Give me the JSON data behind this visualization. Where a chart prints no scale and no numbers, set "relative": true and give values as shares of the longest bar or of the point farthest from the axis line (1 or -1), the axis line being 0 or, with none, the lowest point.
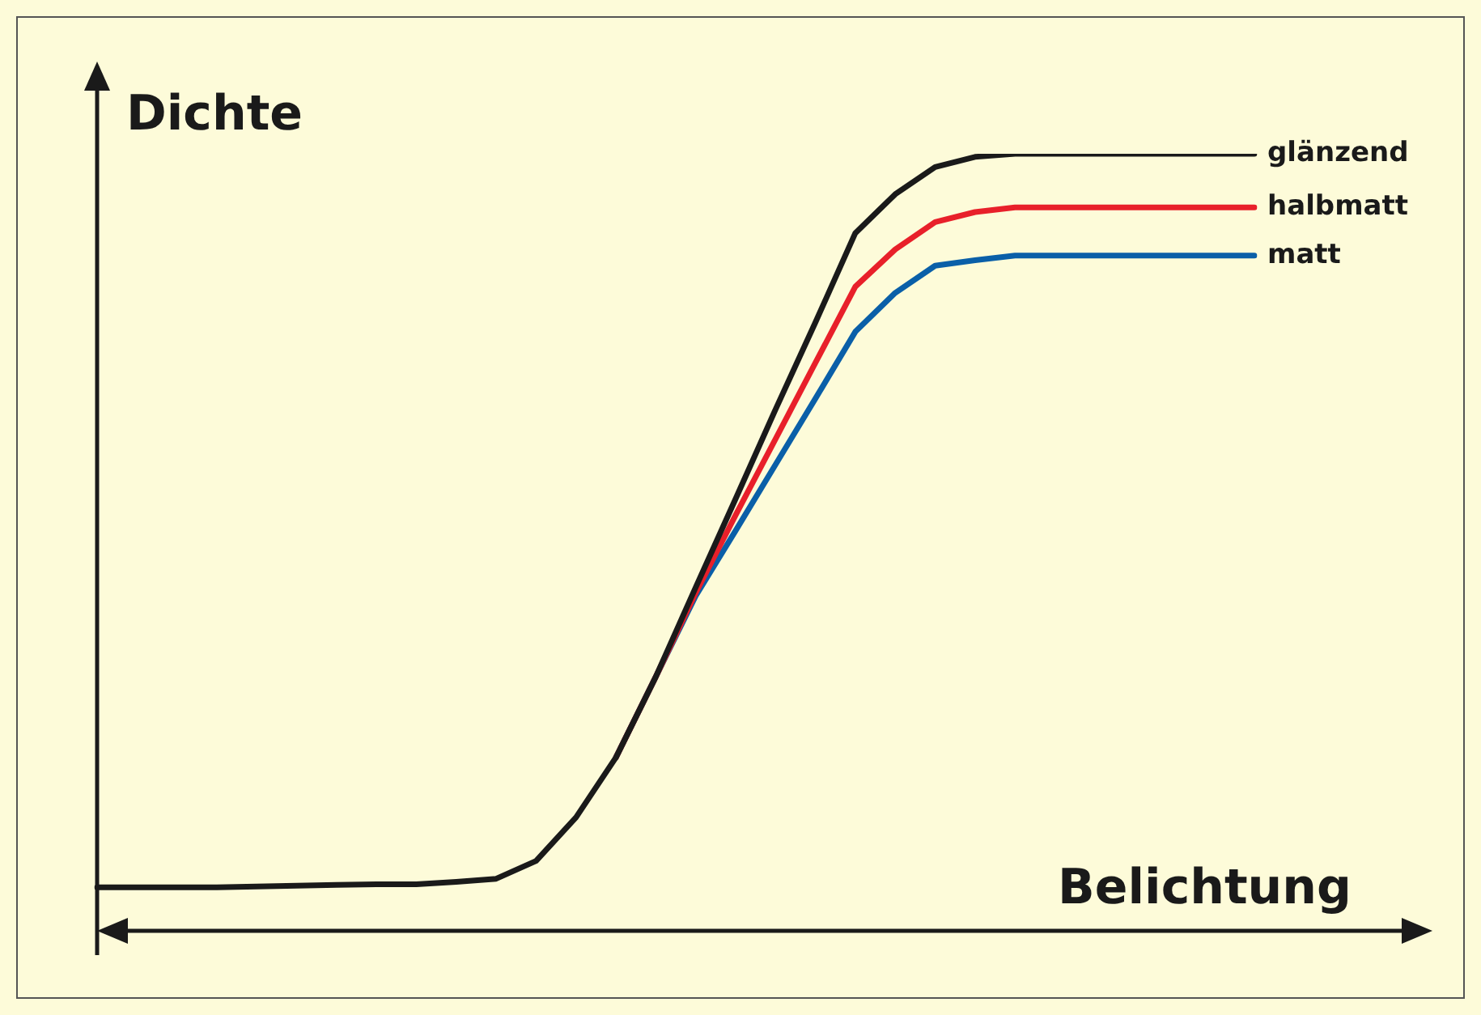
{
  "chart_data": {
    "type": "line",
    "relative": true,
    "xlabel": "Belichtung",
    "ylabel": "Dichte",
    "legend": false,
    "marker": "none",
    "categories": [
      null,
      null,
      null,
      null,
      null,
      null,
      null,
      null,
      null,
      null,
      null,
      null,
      null,
      null,
      null,
      null,
      null,
      null,
      null,
      null,
      null,
      null,
      null,
      null,
      null,
      null,
      null,
      null,
      null,
      null
    ],
    "series": [
      {
        "name": "glänzend",
        "color": "#1a1a1a",
        "values": [
          0.056,
          0.056,
          0.056,
          0.056,
          0.057,
          0.058,
          0.059,
          0.06,
          0.06,
          0.063,
          0.067,
          0.09,
          0.146,
          0.223,
          0.327,
          0.442,
          0.556,
          0.671,
          0.783,
          0.898,
          0.948,
          0.983,
          0.996,
          1,
          1,
          1,
          1,
          1,
          1,
          1
        ]
      },
      {
        "name": "halbmatt",
        "color": "#e8202a",
        "values": [
          null,
          null,
          null,
          null,
          null,
          null,
          null,
          null,
          null,
          null,
          null,
          null,
          null,
          0.223,
          0.327,
          0.435,
          0.535,
          0.633,
          0.731,
          0.829,
          0.877,
          0.912,
          0.925,
          0.931,
          0.931,
          0.931,
          0.931,
          0.931,
          0.931,
          0.931
        ]
      },
      {
        "name": "matt",
        "color": "#0a5fa8",
        "values": [
          null,
          null,
          null,
          null,
          null,
          null,
          null,
          null,
          null,
          null,
          null,
          null,
          null,
          0.223,
          0.327,
          0.431,
          0.515,
          0.6,
          0.685,
          0.771,
          0.821,
          0.856,
          0.863,
          0.869,
          0.869,
          0.869,
          0.869,
          0.869,
          0.869,
          0.869
        ]
      }
    ]
  }
}
